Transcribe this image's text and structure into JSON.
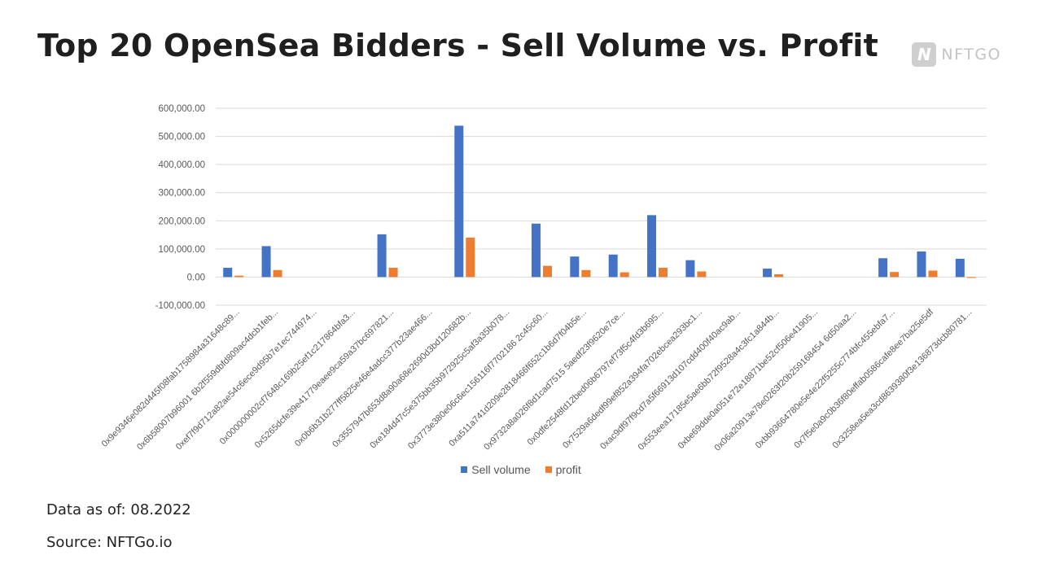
{
  "title": "Top 20 OpenSea Bidders - Sell Volume vs. Profit",
  "brand": {
    "mark": "N",
    "text": "NFTGO"
  },
  "footnotes": {
    "date": "Data as of: 08.2022",
    "source": "Source: NFTGo.io"
  },
  "chart_data": {
    "type": "bar",
    "title": "",
    "xlabel": "",
    "ylabel": "",
    "ylim": [
      -100000,
      600000
    ],
    "yticks": [
      600000,
      500000,
      400000,
      300000,
      200000,
      100000,
      0,
      -100000
    ],
    "ytick_labels": [
      "600,000.00",
      "500,000.00",
      "400,000.00",
      "300,000.00",
      "200,000.00",
      "100,000.00",
      "0.00",
      "-100,000.00"
    ],
    "grid": true,
    "legend": "bottom",
    "categories": [
      "0x9e9346e082d445f08fab1758984a31648c89...",
      "0x6b58007b96001 6b2f559dbfd809ac4dcb1feb...",
      "0xef7f9d712a82ae54c6ece9d95b7e1ec744974...",
      "0x000000002cf7648c169b25ef1c217864bfa3...",
      "0x5265dcfe39e41779eaee9ca59a37bc697821...",
      "0x0b6b31b277ff5825e46e4adcc377b23ae466...",
      "0x3557947b653d8a90a68e2690d3bd120682b...",
      "0xe184d47c5e375bb35b972925c5af3a35b078...",
      "0x3773e380e06c6ec156116f7702186 2c45c60...",
      "0xa511a741d209e2818466f652c1b6d7f04b5e...",
      "0x9732a8a026f8d1cad7515 5aedf23f9620e7ce...",
      "0x0dfe2548fd12bed06b6797ef73f5c4fd3b695...",
      "0x7529a6dedf99ef852a394fa702ebcea293bc1...",
      "0xac9df97f9cd7a5f66913d107cdd400f40ac9ab...",
      "0x553eea17185e5ae6bb72f9528a4c3fc1a844b...",
      "0xbe69dde0a051e72e18871be52cf506e41905...",
      "0x06a20913e78e0263f20b259168454 6d50aa2...",
      "0xbb93664780e5e4e22f5255c774bfc455ebfa7...",
      "0x7f5e0a9c0b36f80effab0586cafe8ee7ba25e5df",
      "0x3258ea5ea3cd8639380f3e136873dcb80781..."
    ],
    "series": [
      {
        "name": "Sell volume",
        "color": "#4472C4",
        "values": [
          33000,
          110000,
          0,
          0,
          152000,
          0,
          538000,
          0,
          190000,
          73000,
          80000,
          220000,
          60000,
          0,
          30000,
          0,
          0,
          67000,
          91000,
          65000
        ]
      },
      {
        "name": "profit",
        "color": "#ED7D31",
        "values": [
          5000,
          25000,
          0,
          0,
          33000,
          0,
          140000,
          0,
          40000,
          25000,
          17000,
          33000,
          20000,
          0,
          10000,
          0,
          0,
          18000,
          23000,
          -3000
        ]
      }
    ]
  }
}
